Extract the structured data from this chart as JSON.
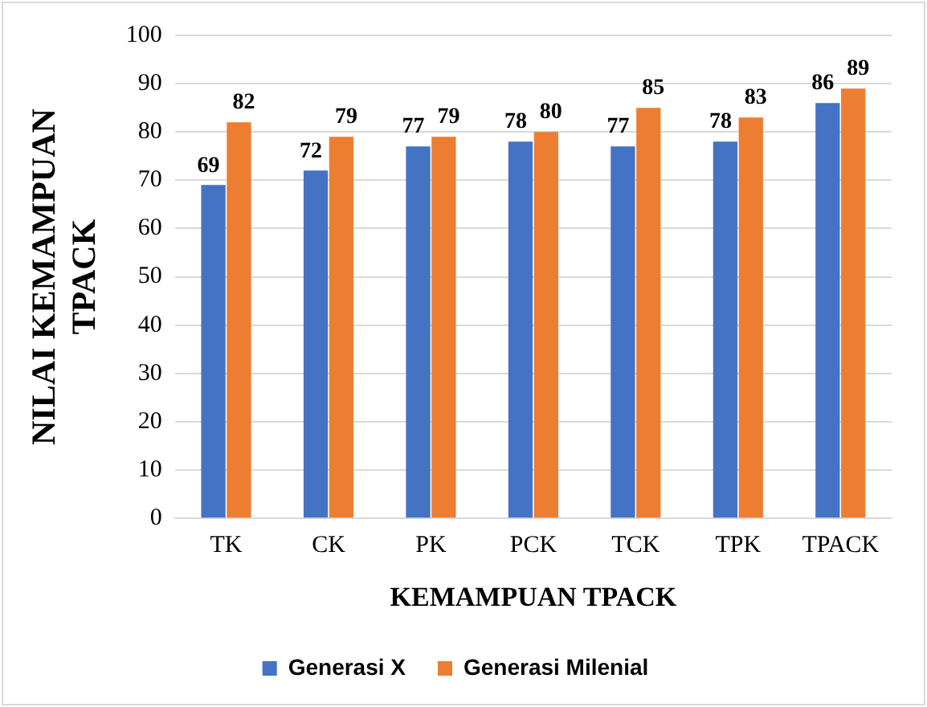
{
  "chart_data": {
    "type": "bar",
    "xlabel": "KEMAMPUAN TPACK",
    "ylabel": "NILAI KEMAMPUAN TPACK",
    "categories": [
      "TK",
      "CK",
      "PK",
      "PCK",
      "TCK",
      "TPK",
      "TPACK"
    ],
    "series": [
      {
        "name": "Generasi X",
        "color": "#4472c4",
        "values": [
          69,
          72,
          77,
          78,
          77,
          78,
          86
        ]
      },
      {
        "name": "Generasi Milenial",
        "color": "#ed7d31",
        "values": [
          82,
          79,
          79,
          80,
          85,
          83,
          89
        ]
      }
    ],
    "ylim": [
      0,
      100
    ],
    "yticks": [
      0,
      10,
      20,
      30,
      40,
      50,
      60,
      70,
      80,
      90,
      100
    ],
    "grid": "y",
    "legend": "bottom",
    "data_labels": true
  }
}
